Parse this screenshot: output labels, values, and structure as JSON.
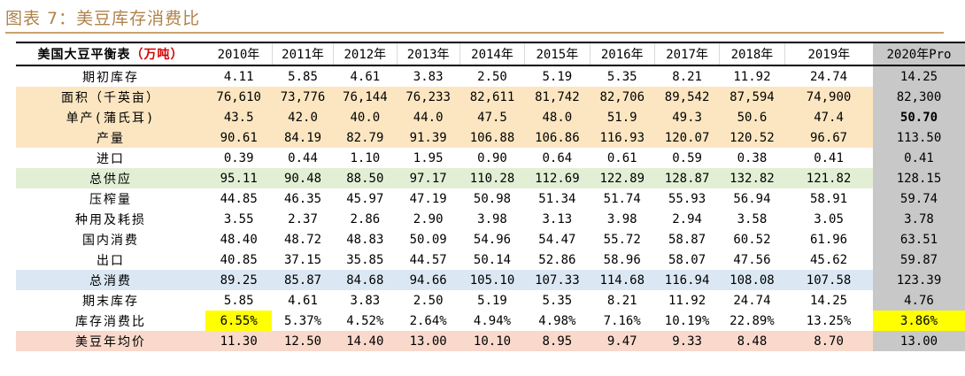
{
  "title": "图表 7：美豆库存消费比",
  "table": {
    "header_label": "美国大豆平衡表",
    "header_unit": "（万吨）",
    "years": [
      "2010年",
      "2011年",
      "2012年",
      "2013年",
      "2014年",
      "2015年",
      "2016年",
      "2017年",
      "2018年",
      "2019年",
      "2020年Pro"
    ],
    "rows": [
      {
        "label": "期初库存",
        "values": [
          "4.11",
          "5.85",
          "4.61",
          "3.83",
          "2.50",
          "5.19",
          "5.35",
          "8.21",
          "11.92",
          "24.74",
          "14.25"
        ]
      },
      {
        "label": "面积（千英亩）",
        "values": [
          "76,610",
          "73,776",
          "76,144",
          "76,233",
          "82,611",
          "81,742",
          "82,706",
          "89,542",
          "87,594",
          "74,900",
          "82,300"
        ]
      },
      {
        "label": "单产(蒲氏耳)",
        "values": [
          "43.5",
          "42.0",
          "40.0",
          "44.0",
          "47.5",
          "48.0",
          "51.9",
          "49.3",
          "50.6",
          "47.4",
          "50.70"
        ]
      },
      {
        "label": "产量",
        "values": [
          "90.61",
          "84.19",
          "82.79",
          "91.39",
          "106.88",
          "106.86",
          "116.93",
          "120.07",
          "120.52",
          "96.67",
          "113.50"
        ]
      },
      {
        "label": "进口",
        "values": [
          "0.39",
          "0.44",
          "1.10",
          "1.95",
          "0.90",
          "0.64",
          "0.61",
          "0.59",
          "0.38",
          "0.41",
          "0.41"
        ]
      },
      {
        "label": "总供应",
        "values": [
          "95.11",
          "90.48",
          "88.50",
          "97.17",
          "110.28",
          "112.69",
          "122.89",
          "128.87",
          "132.82",
          "121.82",
          "128.15"
        ]
      },
      {
        "label": "压榨量",
        "values": [
          "44.85",
          "46.35",
          "45.97",
          "47.19",
          "50.98",
          "51.34",
          "51.74",
          "55.93",
          "56.94",
          "58.91",
          "59.74"
        ]
      },
      {
        "label": "种用及耗损",
        "values": [
          "3.55",
          "2.37",
          "2.86",
          "2.90",
          "3.98",
          "3.13",
          "3.98",
          "2.94",
          "3.58",
          "3.05",
          "3.78"
        ]
      },
      {
        "label": "国内消费",
        "values": [
          "48.40",
          "48.72",
          "48.83",
          "50.09",
          "54.96",
          "54.47",
          "55.72",
          "58.87",
          "60.52",
          "61.96",
          "63.51"
        ]
      },
      {
        "label": "出口",
        "values": [
          "40.85",
          "37.15",
          "35.85",
          "44.57",
          "50.14",
          "52.86",
          "58.96",
          "58.07",
          "47.56",
          "45.62",
          "59.87"
        ]
      },
      {
        "label": "总消费",
        "values": [
          "89.25",
          "85.87",
          "84.68",
          "94.66",
          "105.10",
          "107.33",
          "114.68",
          "116.94",
          "108.08",
          "107.58",
          "123.39"
        ]
      },
      {
        "label": "期末库存",
        "values": [
          "5.85",
          "4.61",
          "3.83",
          "2.50",
          "5.19",
          "5.35",
          "8.21",
          "11.92",
          "24.74",
          "14.25",
          "4.76"
        ]
      },
      {
        "label": "库存消费比",
        "values": [
          "6.55%",
          "5.37%",
          "4.52%",
          "2.64%",
          "4.94%",
          "4.98%",
          "7.16%",
          "10.19%",
          "22.89%",
          "13.25%",
          "3.86%"
        ]
      },
      {
        "label": "美豆年均价",
        "values": [
          "11.30",
          "12.50",
          "14.40",
          "13.00",
          "10.10",
          "8.95",
          "9.47",
          "9.33",
          "8.48",
          "8.70",
          "13.00"
        ]
      }
    ],
    "colors": {
      "orange_rows": "#fce6c1",
      "green_row": "#e2efd5",
      "blue_row": "#dbe8f4",
      "pink_row": "#f9d9cb",
      "last_column": "#c8c8c8",
      "highlight": "#ffff00",
      "unit_text": "#d40000",
      "title_text": "#b0824a"
    }
  }
}
